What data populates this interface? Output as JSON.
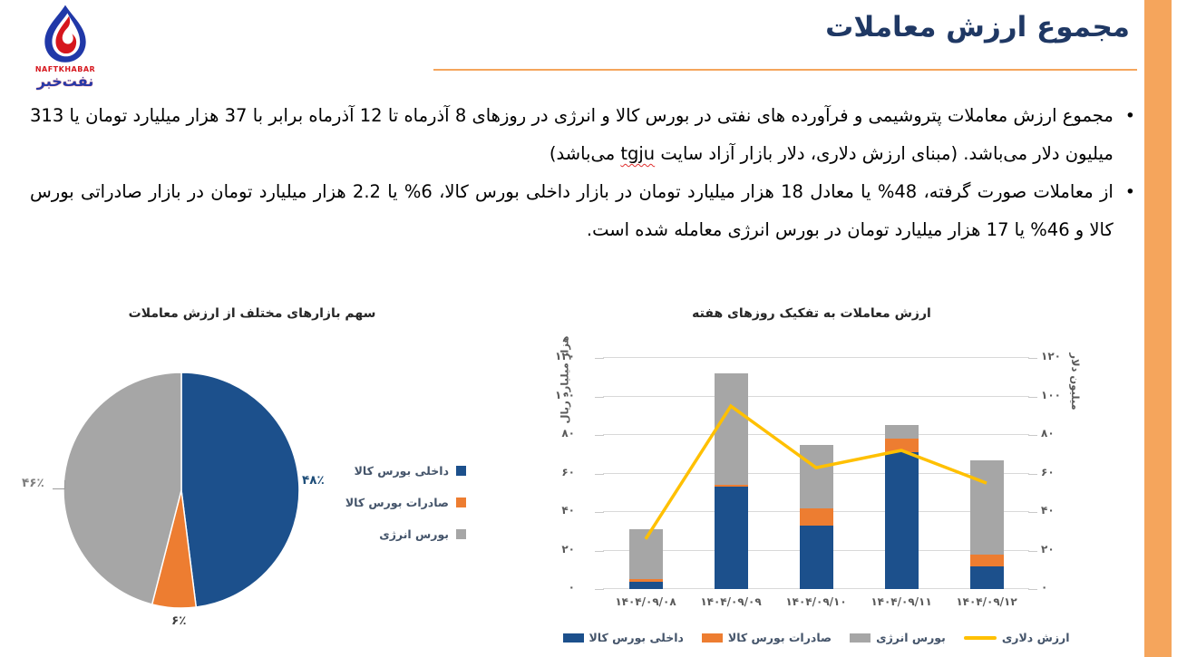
{
  "slide": {
    "title": "مجموع ارزش معاملات",
    "bullet_char": "•",
    "logo": {
      "brand_en": "NAFTKHABAR",
      "brand_fa": "نفت‌خبر"
    },
    "colors": {
      "accent_orange": "#F5A55C",
      "title_navy": "#1F3864",
      "axis_text_gray": "#595959",
      "legend_text": "#44546A"
    }
  },
  "bullets": [
    {
      "parts": [
        "مجموع ارزش معاملات پتروشیمی و فرآورده های نفتی در بورس کالا و انرژی در روزهای 8 آذرماه تا 12 آذرماه برابر با 37 هزار میلیارد تومان یا 313 میلیون دلار می‌باشد. (مبنای ارزش دلاری، دلار بازار آزاد سایت ",
        "tgju",
        " می‌باشد)"
      ]
    },
    {
      "parts": [
        "از معاملات صورت گرفته، 48% یا معادل 18 هزار میلیارد تومان در بازار داخلی بورس کالا، 6% یا 2.2 هزار میلیارد تومان در بازار صادراتی بورس کالا و 46% یا 17 هزار میلیارد تومان در بورس انرژی معامله شده است."
      ]
    }
  ],
  "chart_data": [
    {
      "type": "pie",
      "title": "سهم بازارهای مختلف از ارزش معاملات",
      "legend_position": "right",
      "slices": [
        {
          "label": "داخلی بورس کالا",
          "value_pct": 48,
          "display": "۴۸٪",
          "color": "#1C508C"
        },
        {
          "label": "صادرات بورس کالا",
          "value_pct": 6,
          "display": "۶٪",
          "color": "#ED7D31"
        },
        {
          "label": "بورس انرژی",
          "value_pct": 46,
          "display": "۴۶٪",
          "color": "#A6A6A6"
        }
      ]
    },
    {
      "type": "bar-stacked+line",
      "title": "ارزش معاملات به تفکیک روزهای هفته",
      "categories": [
        "۱۴۰۴/۰۹/۰۸",
        "۱۴۰۴/۰۹/۰۹",
        "۱۴۰۴/۰۹/۱۰",
        "۱۴۰۴/۰۹/۱۱",
        "۱۴۰۴/۰۹/۱۲"
      ],
      "series": [
        {
          "name": "داخلی بورس کالا",
          "type": "bar",
          "color": "#1C508C",
          "values": [
            4,
            53,
            33,
            71,
            12
          ]
        },
        {
          "name": "صادرات بورس کالا",
          "type": "bar",
          "color": "#ED7D31",
          "values": [
            1,
            1,
            9,
            7,
            6
          ]
        },
        {
          "name": "بورس انرژی",
          "type": "bar",
          "color": "#A6A6A6",
          "values": [
            26,
            58,
            33,
            7,
            49
          ]
        },
        {
          "name": "ارزش دلاری",
          "type": "line",
          "color": "#FFC000",
          "values": [
            26,
            95,
            63,
            72,
            55
          ]
        }
      ],
      "y_left": {
        "title": "هزار میلیارد ریال",
        "min": 0,
        "max": 120,
        "step": 20,
        "ticks": [
          "۰",
          "۲۰",
          "۴۰",
          "۶۰",
          "۸۰",
          "۱۰۰",
          "۱۲۰"
        ]
      },
      "y_right": {
        "title": "میلیون دلار",
        "min": 0,
        "max": 120,
        "step": 20,
        "ticks": [
          "۰",
          "۲۰",
          "۴۰",
          "۶۰",
          "۸۰",
          "۱۰۰",
          "۱۲۰"
        ]
      },
      "grid": true
    }
  ]
}
